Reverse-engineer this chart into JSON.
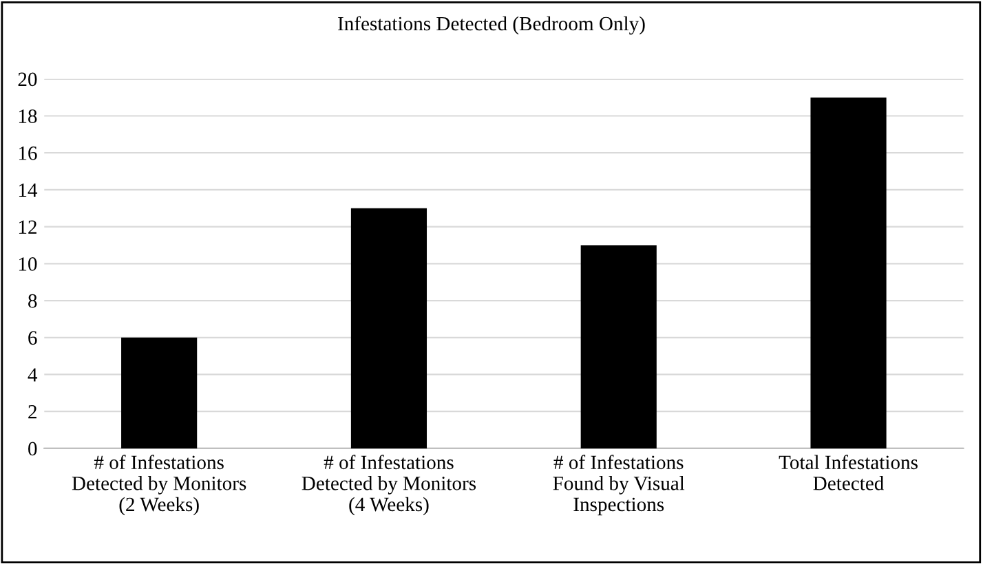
{
  "chart_data": {
    "type": "bar",
    "title": "Infestations Detected (Bedroom Only)",
    "categories": [
      "# of Infestations\nDetected by Monitors\n(2 Weeks)",
      "# of Infestations\nDetected by Monitors\n(4 Weeks)",
      "# of Infestations\nFound by Visual\nInspections",
      "Total Infestations\nDetected"
    ],
    "values": [
      6,
      13,
      11,
      19
    ],
    "color": "#000000",
    "ylim": [
      0,
      20
    ],
    "yticks": [
      0,
      2,
      4,
      6,
      8,
      10,
      12,
      14,
      16,
      18,
      20
    ],
    "grid": "y"
  }
}
